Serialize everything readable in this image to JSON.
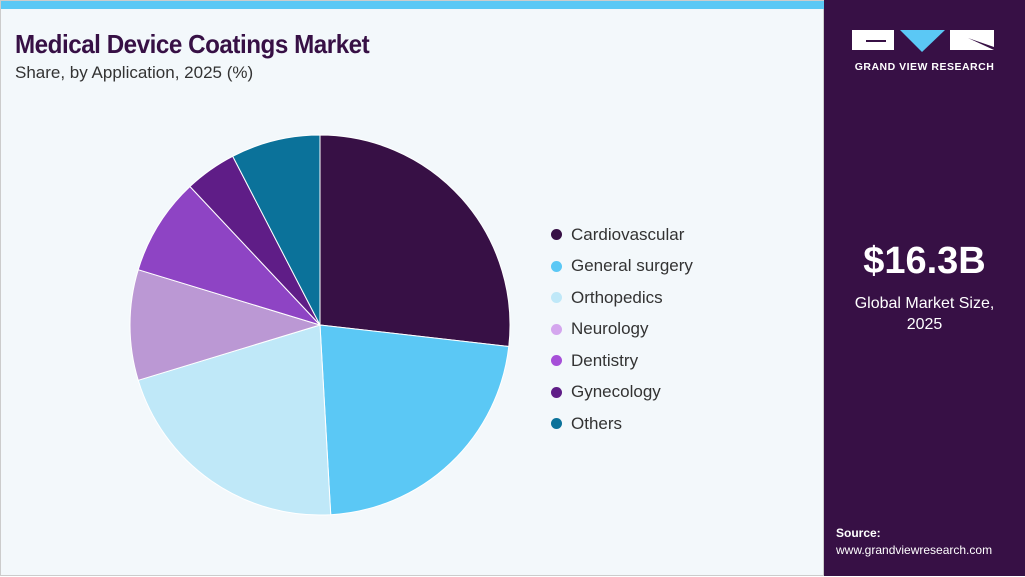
{
  "header": {
    "title": "Medical Device Coatings Market",
    "subtitle": "Share, by Application, 2025 (%)"
  },
  "chart_data": {
    "type": "pie",
    "categories": [
      "Cardiovascular",
      "General surgery",
      "Orthopedics",
      "Neurology",
      "Dentistry",
      "Gynecology",
      "Others"
    ],
    "values": [
      26.8,
      22.3,
      21.2,
      9.4,
      8.3,
      4.4,
      7.6
    ],
    "colors": [
      "#371045",
      "#5bc8f5",
      "#bfe8f8",
      "#bb98d4",
      "#8e44c4",
      "#5f1d87",
      "#0b729a"
    ],
    "legend_colors": [
      "#371045",
      "#5bc8f5",
      "#bfe8f8",
      "#d4a6ee",
      "#a64fd8",
      "#5f1d87",
      "#0b729a"
    ],
    "start": "12 o'clock",
    "direction": "clockwise",
    "legend_position": "right"
  },
  "sidebar": {
    "brand": "GRAND VIEW RESEARCH",
    "market_size": "$16.3B",
    "market_size_label_1": "Global Market Size,",
    "market_size_label_2": "2025",
    "source_label": "Source:",
    "source_url": "www.grandviewresearch.com"
  }
}
